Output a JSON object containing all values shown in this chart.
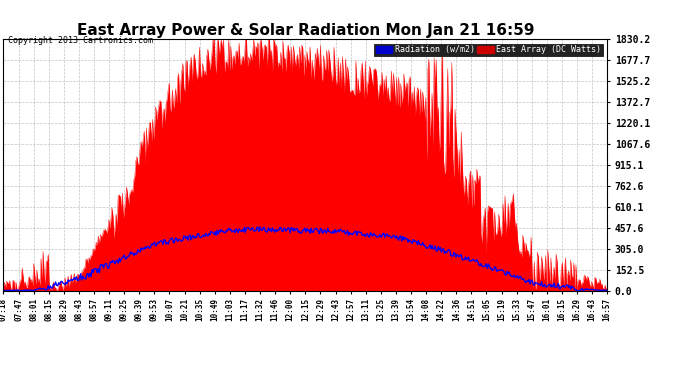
{
  "title": "East Array Power & Solar Radiation Mon Jan 21 16:59",
  "copyright": "Copyright 2013 Cartronics.com",
  "legend_labels": [
    "Radiation (w/m2)",
    "East Array (DC Watts)"
  ],
  "yticks": [
    0.0,
    152.5,
    305.0,
    457.6,
    610.1,
    762.6,
    915.1,
    1067.6,
    1220.1,
    1372.7,
    1525.2,
    1677.7,
    1830.2
  ],
  "ymax": 1830.2,
  "ymin": 0.0,
  "bg_color": "#ffffff",
  "plot_bg": "#ffffff",
  "grid_color": "#aaaaaa",
  "red_color": "#ff0000",
  "blue_color": "#0000ff",
  "xtick_labels": [
    "07:18",
    "07:47",
    "08:01",
    "08:15",
    "08:29",
    "08:43",
    "08:57",
    "09:11",
    "09:25",
    "09:39",
    "09:53",
    "10:07",
    "10:21",
    "10:35",
    "10:49",
    "11:03",
    "11:17",
    "11:32",
    "11:46",
    "12:00",
    "12:15",
    "12:29",
    "12:43",
    "12:57",
    "13:11",
    "13:25",
    "13:39",
    "13:54",
    "14:08",
    "14:22",
    "14:36",
    "14:51",
    "15:05",
    "15:19",
    "15:33",
    "15:47",
    "16:01",
    "16:15",
    "16:29",
    "16:43",
    "16:57"
  ],
  "n_ticks": 41
}
